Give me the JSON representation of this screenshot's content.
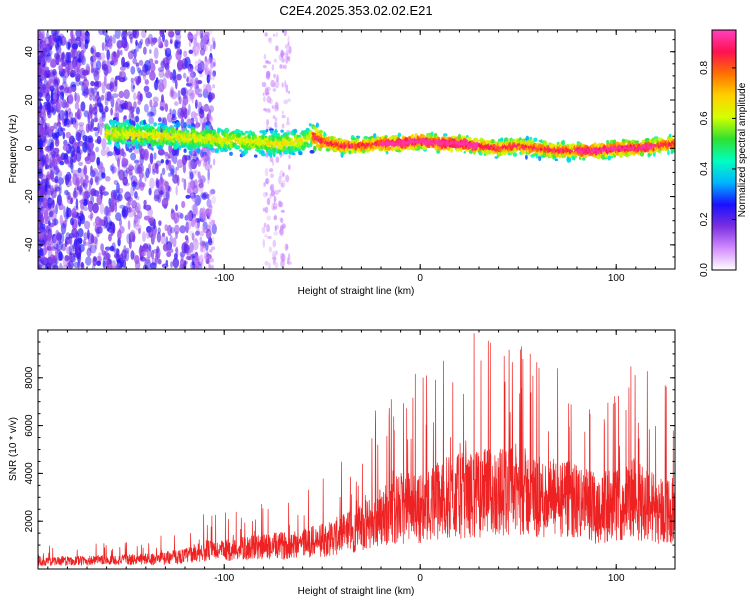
{
  "chart_data": [
    {
      "type": "heatmap",
      "title": "C2E4.2025.353.02.02.E21",
      "xlabel": "Height of straight line (km)",
      "ylabel": "Frequency (Hz)",
      "xlim": [
        -195,
        130
      ],
      "ylim": [
        -50,
        49
      ],
      "xticks": [
        -100,
        0,
        100
      ],
      "xtick_labels": [
        "-100",
        "0",
        "100"
      ],
      "yticks": [
        -40,
        -20,
        0,
        20,
        40
      ],
      "ytick_labels": [
        "-40",
        "-20",
        "0",
        "20",
        "40"
      ],
      "ridge": {
        "x": [
          -150,
          -130,
          -110,
          -90,
          -70,
          -60,
          -55,
          -50,
          -40,
          -30,
          -20,
          -10,
          0,
          10,
          20,
          30,
          40,
          50,
          60,
          70,
          80,
          90,
          100,
          110,
          120,
          130
        ],
        "freq": [
          6,
          5,
          4,
          3,
          2,
          3,
          5,
          3,
          1,
          1,
          2,
          2,
          3,
          2,
          2,
          1,
          0,
          1,
          0,
          -1,
          -1,
          -1,
          0,
          0,
          1,
          2
        ]
      },
      "colorbar": {
        "label": "Normalized spectral amplitude",
        "range": [
          0.0,
          0.95
        ],
        "ticks": [
          0.0,
          0.2,
          0.4,
          0.6,
          0.8
        ],
        "tick_labels": [
          "0.0",
          "0.2",
          "0.4",
          "0.6",
          "0.8"
        ],
        "colors": [
          "#ffffff",
          "#d28cff",
          "#7b2fe0",
          "#1a10ff",
          "#00b4ff",
          "#00ffc0",
          "#30e030",
          "#d4ff00",
          "#ffd000",
          "#ff7000",
          "#ff1050",
          "#ff40c0"
        ]
      },
      "accent_color": "#7b2fe0"
    },
    {
      "type": "line",
      "xlabel": "Height of straight line (km)",
      "ylabel": "SNR (10 * v/v)",
      "xlim": [
        -195,
        130
      ],
      "ylim": [
        0,
        10000
      ],
      "xticks": [
        -100,
        0,
        100
      ],
      "xtick_labels": [
        "-100",
        "0",
        "100"
      ],
      "yticks": [
        2000,
        4000,
        6000,
        8000
      ],
      "ytick_labels": [
        "2000",
        "4000",
        "6000",
        "8000"
      ],
      "series": [
        {
          "name": "SNR",
          "color": "#ee2222",
          "x": [
            -195,
            -180,
            -165,
            -150,
            -135,
            -120,
            -110,
            -100,
            -90,
            -80,
            -70,
            -60,
            -50,
            -40,
            -30,
            -20,
            -10,
            0,
            10,
            20,
            30,
            40,
            50,
            60,
            70,
            80,
            90,
            100,
            110,
            120,
            130
          ],
          "values": [
            350,
            400,
            420,
            450,
            500,
            650,
            900,
            900,
            1000,
            1100,
            1150,
            1300,
            1400,
            1700,
            2000,
            2600,
            3000,
            3000,
            3400,
            3600,
            3700,
            3800,
            3900,
            3500,
            3400,
            3300,
            3000,
            3100,
            3500,
            3000,
            2800
          ]
        }
      ]
    }
  ]
}
